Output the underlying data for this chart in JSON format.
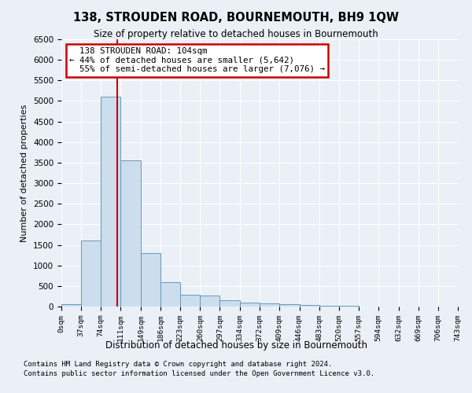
{
  "title": "138, STROUDEN ROAD, BOURNEMOUTH, BH9 1QW",
  "subtitle": "Size of property relative to detached houses in Bournemouth",
  "xlabel": "Distribution of detached houses by size in Bournemouth",
  "ylabel": "Number of detached properties",
  "footnote1": "Contains HM Land Registry data © Crown copyright and database right 2024.",
  "footnote2": "Contains public sector information licensed under the Open Government Licence v3.0.",
  "bar_edges": [
    0,
    37,
    74,
    111,
    149,
    186,
    223,
    260,
    297,
    334,
    372,
    409,
    446,
    483,
    520,
    557,
    594,
    632,
    669,
    706,
    743
  ],
  "bar_heights": [
    50,
    1600,
    5100,
    3550,
    1300,
    600,
    280,
    260,
    150,
    100,
    75,
    50,
    30,
    20,
    10,
    5,
    3,
    2,
    1,
    1
  ],
  "bar_color": "#ccdded",
  "bar_edge_color": "#6699bb",
  "property_size": 104,
  "vline_color": "#cc0000",
  "annotation_text": "  138 STROUDEN ROAD: 104sqm  \n← 44% of detached houses are smaller (5,642)\n  55% of semi-detached houses are larger (7,076) →",
  "annotation_box_color": "#ffffff",
  "annotation_box_edge": "#cc0000",
  "ylim": [
    0,
    6500
  ],
  "yticks": [
    0,
    500,
    1000,
    1500,
    2000,
    2500,
    3000,
    3500,
    4000,
    4500,
    5000,
    5500,
    6000,
    6500
  ],
  "bg_color": "#eaf0f6",
  "plot_bg_color": "#eaf0f6",
  "tick_labels": [
    "0sqm",
    "37sqm",
    "74sqm",
    "111sqm",
    "149sqm",
    "186sqm",
    "223sqm",
    "260sqm",
    "297sqm",
    "334sqm",
    "372sqm",
    "409sqm",
    "446sqm",
    "483sqm",
    "520sqm",
    "557sqm",
    "594sqm",
    "632sqm",
    "669sqm",
    "706sqm",
    "743sqm"
  ]
}
